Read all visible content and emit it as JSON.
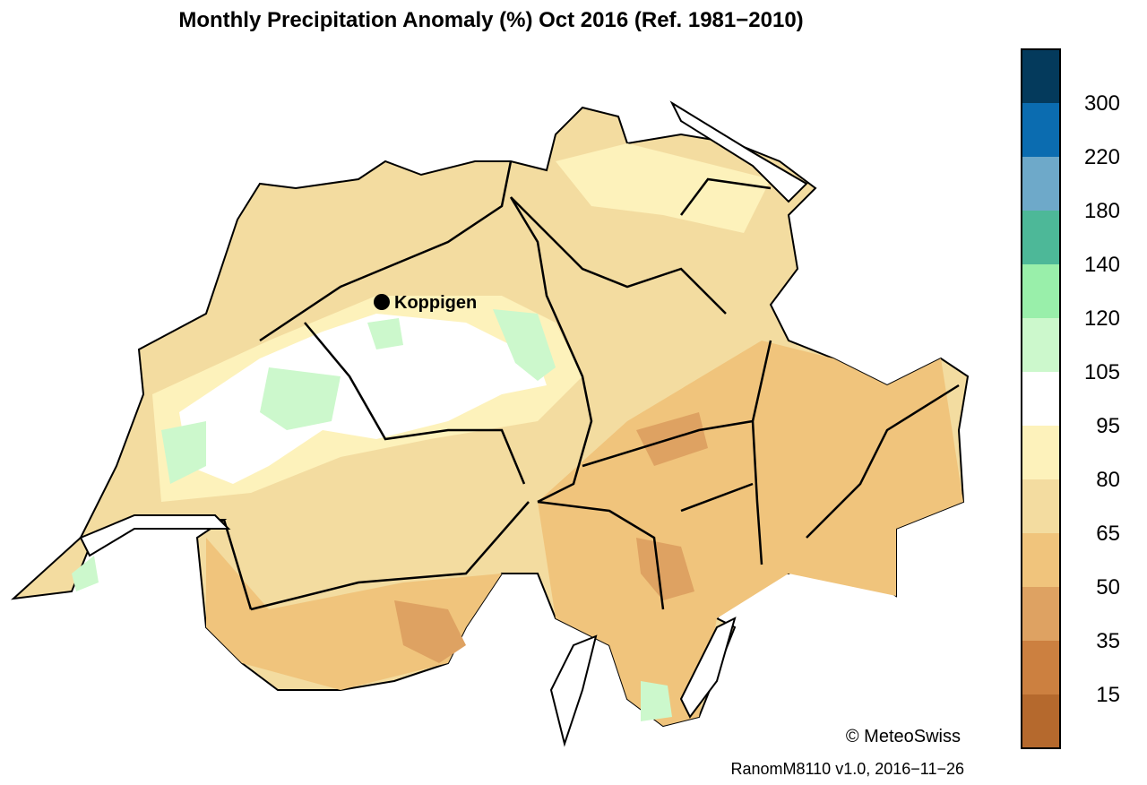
{
  "title": "Monthly Precipitation Anomaly (%) Oct 2016  (Ref. 1981−2010)",
  "map": {
    "station": "Koppigen",
    "copyright": "© MeteoSwiss",
    "version": "RanomM8110 v1.0, 2016−11−26"
  },
  "legend": {
    "colors": [
      "#b5692d",
      "#cc8040",
      "#dea262",
      "#f0c47c",
      "#f3dca0",
      "#fdf2bb",
      "#ffffff",
      "#ccf8cc",
      "#99efaa",
      "#4db898",
      "#6ea9c9",
      "#0b6cb0",
      "#043a5c"
    ],
    "breaks": [
      15,
      35,
      50,
      65,
      80,
      95,
      105,
      120,
      140,
      180,
      220,
      300
    ]
  }
}
